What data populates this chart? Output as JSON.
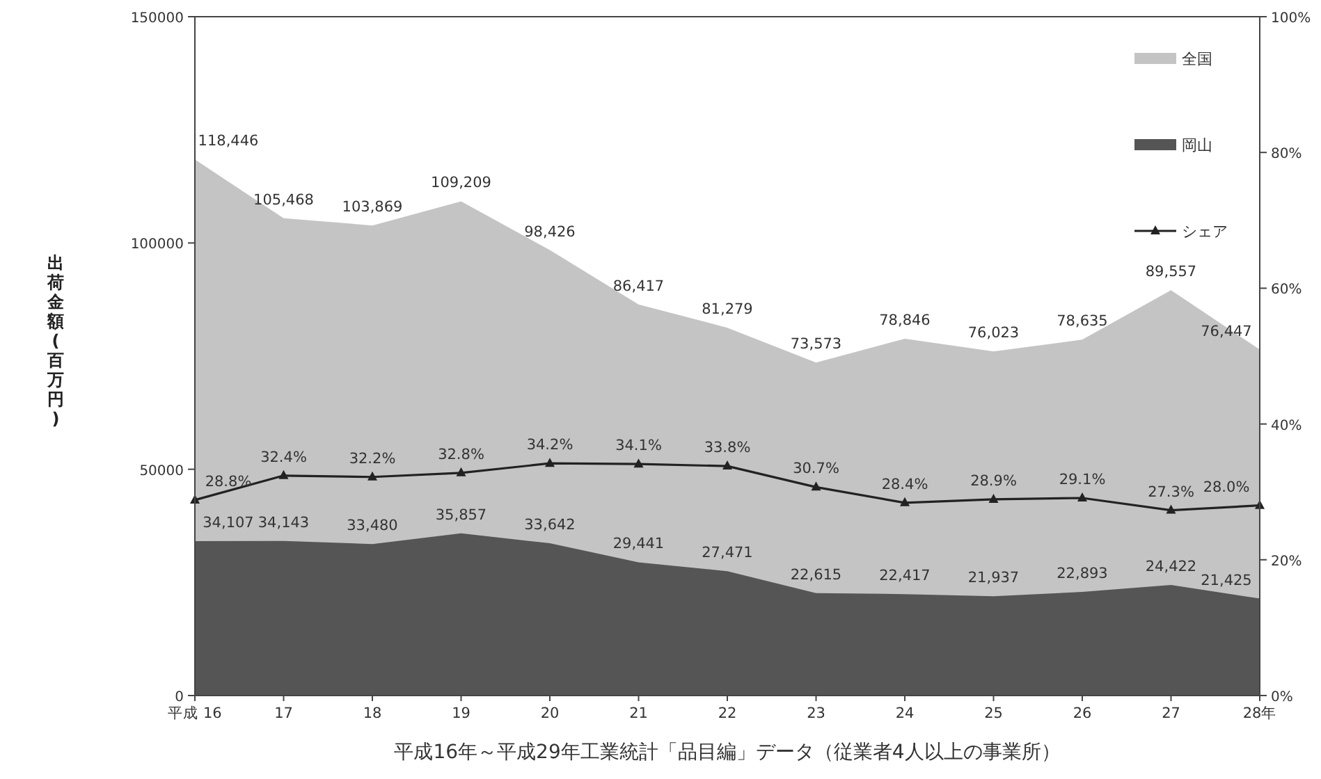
{
  "chart_data": {
    "type": "area",
    "categories": [
      "平成 16",
      "17",
      "18",
      "19",
      "20",
      "21",
      "22",
      "23",
      "24",
      "25",
      "26",
      "27",
      "28年"
    ],
    "ylabel": "出荷金額(百万円)",
    "ylim": [
      0,
      150000
    ],
    "yticks": [
      0,
      50000,
      100000,
      150000
    ],
    "y2lim": [
      0,
      100
    ],
    "y2ticks": [
      {
        "value": 0,
        "label": "0%"
      },
      {
        "value": 20,
        "label": "20%"
      },
      {
        "value": 40,
        "label": "40%"
      },
      {
        "value": 60,
        "label": "60%"
      },
      {
        "value": 80,
        "label": "80%"
      },
      {
        "value": 100,
        "label": "100%"
      }
    ],
    "series": [
      {
        "name": "全国",
        "color": "#c4c4c4",
        "values": [
          118446,
          105468,
          103869,
          109209,
          98426,
          86417,
          81279,
          73573,
          78846,
          76023,
          78635,
          89557,
          76447
        ],
        "value_labels": [
          "118,446",
          "105,468",
          "103,869",
          "109,209",
          "98,426",
          "86,417",
          "81,279",
          "73,573",
          "78,846",
          "76,023",
          "78,635",
          "89,557",
          "76,447"
        ]
      },
      {
        "name": "岡山",
        "color": "#555555",
        "values": [
          34107,
          34143,
          33480,
          35857,
          33642,
          29441,
          27471,
          22615,
          22417,
          21937,
          22893,
          24422,
          21425
        ],
        "value_labels": [
          "34,107",
          "34,143",
          "33,480",
          "35,857",
          "33,642",
          "29,441",
          "27,471",
          "22,615",
          "22,417",
          "21,937",
          "22,893",
          "24,422",
          "21,425"
        ]
      },
      {
        "name": "シェア",
        "type": "line",
        "axis": "y2",
        "color": "#222222",
        "marker": "triangle",
        "values": [
          28.8,
          32.4,
          32.2,
          32.8,
          34.2,
          34.1,
          33.8,
          30.7,
          28.4,
          28.9,
          29.1,
          27.3,
          28.0
        ],
        "value_labels": [
          "28.8%",
          "32.4%",
          "32.2%",
          "32.8%",
          "34.2%",
          "34.1%",
          "33.8%",
          "30.7%",
          "28.4%",
          "28.9%",
          "29.1%",
          "27.3%",
          "28.0%"
        ]
      }
    ],
    "legend": "top right",
    "grid": false,
    "annotations": [
      "平成16年～平成29年工業統計「品目編」データ（従業者4人以上の事業所）"
    ]
  }
}
